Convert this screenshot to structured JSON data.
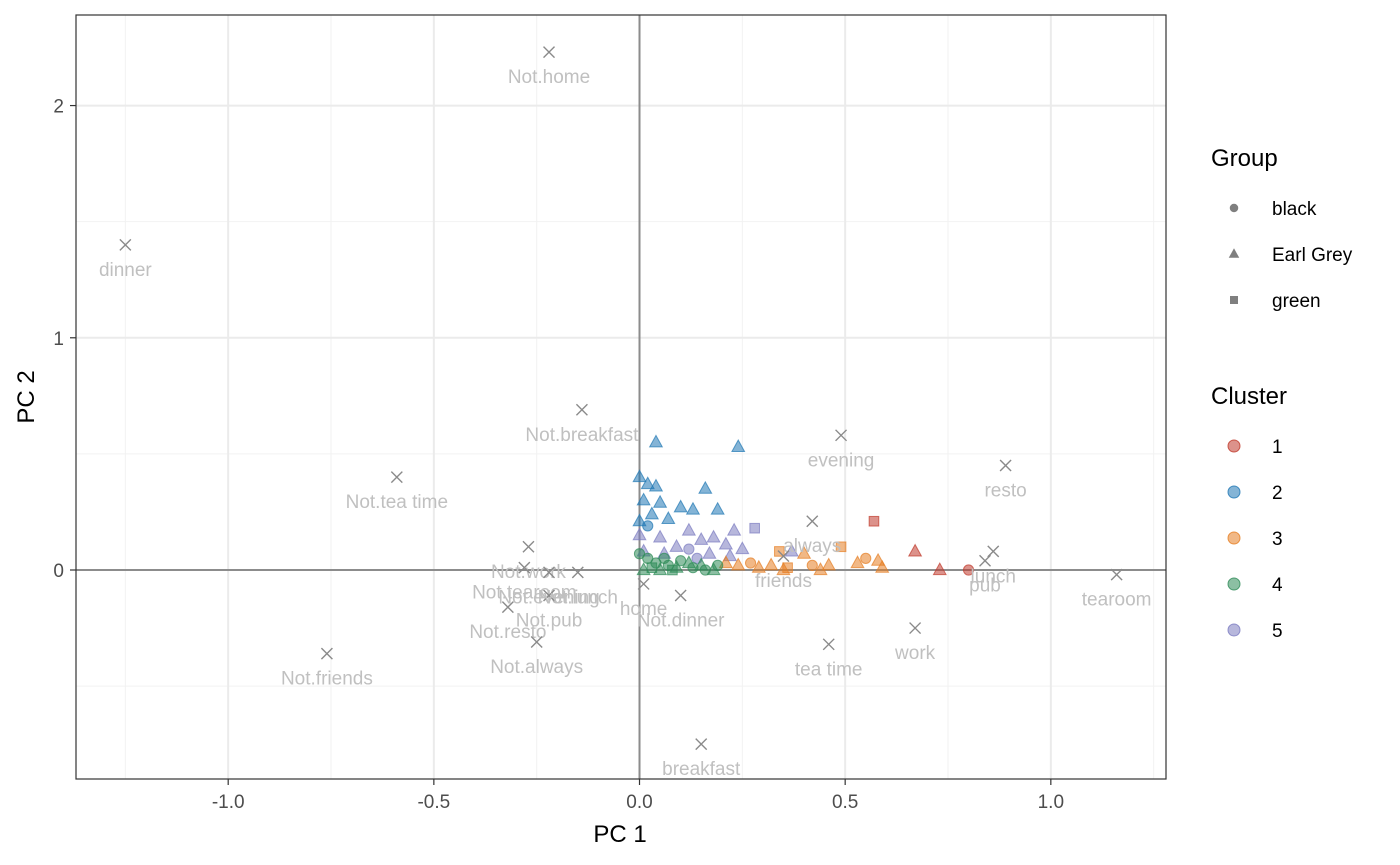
{
  "chart_data": {
    "type": "scatter",
    "xlabel": "PC 1",
    "ylabel": "PC 2",
    "xlim": [
      -1.37,
      1.28
    ],
    "ylim": [
      -0.9,
      2.39
    ],
    "x_ticks": [
      -1.0,
      -0.5,
      0.0,
      0.5,
      1.0
    ],
    "x_tick_labels": [
      "-1.0",
      "-0.5",
      "0.0",
      "0.5",
      "1.0"
    ],
    "y_ticks": [
      0,
      1,
      2
    ],
    "y_tick_labels": [
      "0",
      "1",
      "2"
    ],
    "grid": true,
    "reference_lines": {
      "x": 0,
      "y": 0
    },
    "legend": {
      "placement": "right",
      "group": {
        "title": "Group",
        "entries": [
          {
            "label": "black",
            "shape": "circle"
          },
          {
            "label": "Earl Grey",
            "shape": "triangle"
          },
          {
            "label": "green",
            "shape": "square"
          }
        ]
      },
      "cluster": {
        "title": "Cluster",
        "entries": [
          {
            "label": "1",
            "color": "#c0392b"
          },
          {
            "label": "2",
            "color": "#1f77b4"
          },
          {
            "label": "3",
            "color": "#e67e22"
          },
          {
            "label": "4",
            "color": "#2e8b57"
          },
          {
            "label": "5",
            "color": "#7b7bc0"
          }
        ]
      }
    },
    "variables": [
      {
        "label": "Not.home",
        "x": -0.22,
        "y": 2.23
      },
      {
        "label": "dinner",
        "x": -1.25,
        "y": 1.4
      },
      {
        "label": "Not.breakfast",
        "x": -0.14,
        "y": 0.69
      },
      {
        "label": "evening",
        "x": 0.49,
        "y": 0.58
      },
      {
        "label": "resto",
        "x": 0.89,
        "y": 0.45
      },
      {
        "label": "Not.tea time",
        "x": -0.59,
        "y": 0.4
      },
      {
        "label": "always",
        "x": 0.42,
        "y": 0.21
      },
      {
        "label": "Not.work",
        "x": -0.27,
        "y": 0.1
      },
      {
        "label": "lunch",
        "x": 0.86,
        "y": 0.08
      },
      {
        "label": "friends",
        "x": 0.35,
        "y": 0.06
      },
      {
        "label": "Not.lunch",
        "x": -0.15,
        "y": -0.01
      },
      {
        "label": "Not.tearoom",
        "x": -0.28,
        "y": 0.01
      },
      {
        "label": "home",
        "x": 0.01,
        "y": -0.06
      },
      {
        "label": "pub",
        "x": 0.84,
        "y": 0.04
      },
      {
        "label": "tearoom",
        "x": 1.16,
        "y": -0.02
      },
      {
        "label": "Not.pub",
        "x": -0.22,
        "y": -0.11
      },
      {
        "label": "Not.dinner",
        "x": 0.1,
        "y": -0.11
      },
      {
        "label": "Not.friends",
        "x": -0.76,
        "y": -0.36
      },
      {
        "label": "Not.resto",
        "x": -0.32,
        "y": -0.16
      },
      {
        "label": "Not.always",
        "x": -0.25,
        "y": -0.31
      },
      {
        "label": "Not.evening",
        "x": -0.22,
        "y": -0.01
      },
      {
        "label": "work",
        "x": 0.67,
        "y": -0.25
      },
      {
        "label": "tea time",
        "x": 0.46,
        "y": -0.32
      },
      {
        "label": "breakfast",
        "x": 0.15,
        "y": -0.75
      }
    ],
    "points": [
      {
        "x": 0.04,
        "y": 0.55,
        "group": "Earl Grey",
        "cluster": "2"
      },
      {
        "x": 0.24,
        "y": 0.53,
        "group": "Earl Grey",
        "cluster": "2"
      },
      {
        "x": 0.0,
        "y": 0.4,
        "group": "Earl Grey",
        "cluster": "2"
      },
      {
        "x": 0.02,
        "y": 0.37,
        "group": "Earl Grey",
        "cluster": "2"
      },
      {
        "x": 0.04,
        "y": 0.36,
        "group": "Earl Grey",
        "cluster": "2"
      },
      {
        "x": 0.16,
        "y": 0.35,
        "group": "Earl Grey",
        "cluster": "2"
      },
      {
        "x": 0.01,
        "y": 0.3,
        "group": "Earl Grey",
        "cluster": "2"
      },
      {
        "x": 0.05,
        "y": 0.29,
        "group": "Earl Grey",
        "cluster": "2"
      },
      {
        "x": 0.1,
        "y": 0.27,
        "group": "Earl Grey",
        "cluster": "2"
      },
      {
        "x": 0.13,
        "y": 0.26,
        "group": "Earl Grey",
        "cluster": "2"
      },
      {
        "x": 0.19,
        "y": 0.26,
        "group": "Earl Grey",
        "cluster": "2"
      },
      {
        "x": 0.03,
        "y": 0.24,
        "group": "Earl Grey",
        "cluster": "2"
      },
      {
        "x": 0.0,
        "y": 0.21,
        "group": "Earl Grey",
        "cluster": "2"
      },
      {
        "x": 0.07,
        "y": 0.22,
        "group": "Earl Grey",
        "cluster": "2"
      },
      {
        "x": 0.02,
        "y": 0.19,
        "group": "black",
        "cluster": "2"
      },
      {
        "x": 0.57,
        "y": 0.21,
        "group": "green",
        "cluster": "1"
      },
      {
        "x": 0.67,
        "y": 0.08,
        "group": "Earl Grey",
        "cluster": "1"
      },
      {
        "x": 0.73,
        "y": 0.0,
        "group": "Earl Grey",
        "cluster": "1"
      },
      {
        "x": 0.8,
        "y": 0.0,
        "group": "black",
        "cluster": "1"
      },
      {
        "x": 0.12,
        "y": 0.17,
        "group": "Earl Grey",
        "cluster": "5"
      },
      {
        "x": 0.23,
        "y": 0.17,
        "group": "Earl Grey",
        "cluster": "5"
      },
      {
        "x": 0.28,
        "y": 0.18,
        "group": "green",
        "cluster": "5"
      },
      {
        "x": 0.0,
        "y": 0.15,
        "group": "Earl Grey",
        "cluster": "5"
      },
      {
        "x": 0.05,
        "y": 0.14,
        "group": "Earl Grey",
        "cluster": "5"
      },
      {
        "x": 0.15,
        "y": 0.13,
        "group": "Earl Grey",
        "cluster": "5"
      },
      {
        "x": 0.18,
        "y": 0.14,
        "group": "Earl Grey",
        "cluster": "5"
      },
      {
        "x": 0.21,
        "y": 0.11,
        "group": "Earl Grey",
        "cluster": "5"
      },
      {
        "x": 0.09,
        "y": 0.1,
        "group": "Earl Grey",
        "cluster": "5"
      },
      {
        "x": 0.12,
        "y": 0.09,
        "group": "black",
        "cluster": "5"
      },
      {
        "x": 0.25,
        "y": 0.09,
        "group": "Earl Grey",
        "cluster": "5"
      },
      {
        "x": 0.01,
        "y": 0.08,
        "group": "Earl Grey",
        "cluster": "5"
      },
      {
        "x": 0.06,
        "y": 0.07,
        "group": "Earl Grey",
        "cluster": "5"
      },
      {
        "x": 0.17,
        "y": 0.07,
        "group": "Earl Grey",
        "cluster": "5"
      },
      {
        "x": 0.22,
        "y": 0.06,
        "group": "Earl Grey",
        "cluster": "5"
      },
      {
        "x": 0.37,
        "y": 0.08,
        "group": "Earl Grey",
        "cluster": "5"
      },
      {
        "x": 0.14,
        "y": 0.05,
        "group": "black",
        "cluster": "5"
      },
      {
        "x": 0.34,
        "y": 0.08,
        "group": "green",
        "cluster": "3"
      },
      {
        "x": 0.4,
        "y": 0.07,
        "group": "Earl Grey",
        "cluster": "3"
      },
      {
        "x": 0.49,
        "y": 0.1,
        "group": "green",
        "cluster": "3"
      },
      {
        "x": 0.55,
        "y": 0.05,
        "group": "black",
        "cluster": "3"
      },
      {
        "x": 0.53,
        "y": 0.03,
        "group": "Earl Grey",
        "cluster": "3"
      },
      {
        "x": 0.58,
        "y": 0.04,
        "group": "Earl Grey",
        "cluster": "3"
      },
      {
        "x": 0.59,
        "y": 0.01,
        "group": "Earl Grey",
        "cluster": "3"
      },
      {
        "x": 0.46,
        "y": 0.02,
        "group": "Earl Grey",
        "cluster": "3"
      },
      {
        "x": 0.42,
        "y": 0.02,
        "group": "black",
        "cluster": "3"
      },
      {
        "x": 0.36,
        "y": 0.01,
        "group": "green",
        "cluster": "3"
      },
      {
        "x": 0.32,
        "y": 0.02,
        "group": "Earl Grey",
        "cluster": "3"
      },
      {
        "x": 0.29,
        "y": 0.01,
        "group": "Earl Grey",
        "cluster": "3"
      },
      {
        "x": 0.27,
        "y": 0.03,
        "group": "black",
        "cluster": "3"
      },
      {
        "x": 0.24,
        "y": 0.02,
        "group": "Earl Grey",
        "cluster": "3"
      },
      {
        "x": 0.21,
        "y": 0.03,
        "group": "Earl Grey",
        "cluster": "3"
      },
      {
        "x": 0.44,
        "y": 0.0,
        "group": "Earl Grey",
        "cluster": "3"
      },
      {
        "x": 0.35,
        "y": 0.0,
        "group": "Earl Grey",
        "cluster": "3"
      },
      {
        "x": 0.0,
        "y": 0.07,
        "group": "black",
        "cluster": "4"
      },
      {
        "x": 0.02,
        "y": 0.05,
        "group": "black",
        "cluster": "4"
      },
      {
        "x": 0.04,
        "y": 0.03,
        "group": "black",
        "cluster": "4"
      },
      {
        "x": 0.07,
        "y": 0.02,
        "group": "black",
        "cluster": "4"
      },
      {
        "x": 0.1,
        "y": 0.04,
        "group": "black",
        "cluster": "4"
      },
      {
        "x": 0.13,
        "y": 0.01,
        "group": "black",
        "cluster": "4"
      },
      {
        "x": 0.16,
        "y": 0.0,
        "group": "black",
        "cluster": "4"
      },
      {
        "x": 0.19,
        "y": 0.02,
        "group": "black",
        "cluster": "4"
      },
      {
        "x": 0.01,
        "y": 0.0,
        "group": "Earl Grey",
        "cluster": "4"
      },
      {
        "x": 0.05,
        "y": 0.0,
        "group": "Earl Grey",
        "cluster": "4"
      },
      {
        "x": 0.09,
        "y": 0.01,
        "group": "Earl Grey",
        "cluster": "4"
      },
      {
        "x": 0.12,
        "y": 0.03,
        "group": "Earl Grey",
        "cluster": "4"
      },
      {
        "x": 0.15,
        "y": 0.02,
        "group": "Earl Grey",
        "cluster": "4"
      },
      {
        "x": 0.03,
        "y": 0.01,
        "group": "green",
        "cluster": "4"
      },
      {
        "x": 0.08,
        "y": 0.0,
        "group": "green",
        "cluster": "4"
      },
      {
        "x": 0.06,
        "y": 0.05,
        "group": "black",
        "cluster": "4"
      },
      {
        "x": 0.18,
        "y": 0.0,
        "group": "Earl Grey",
        "cluster": "4"
      }
    ]
  }
}
